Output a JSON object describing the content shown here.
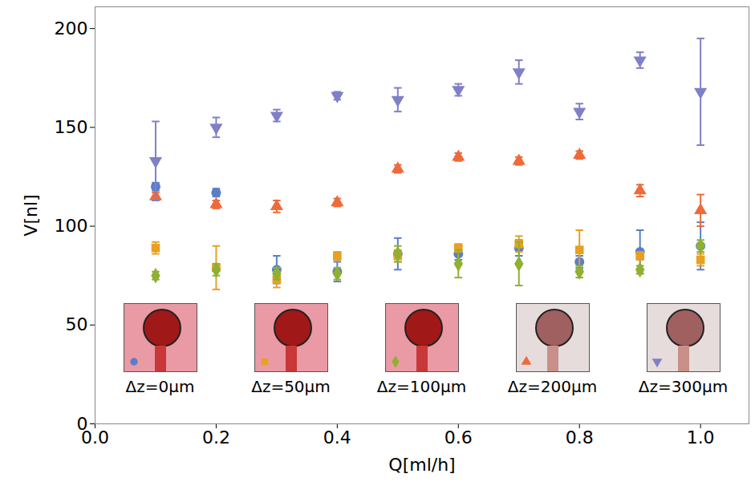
{
  "chart_data": {
    "type": "scatter",
    "x_label": "Q[ml/h]",
    "y_label": "V[nl]",
    "xlim": [
      0,
      1.08
    ],
    "ylim": [
      0,
      211
    ],
    "xticks": [
      {
        "value": 0,
        "label": "0.0"
      },
      0.2,
      0.4,
      0.6,
      0.8,
      {
        "value": 1,
        "label": "1.0"
      }
    ],
    "yticks": [
      0,
      50,
      100,
      150,
      200
    ],
    "grid": false,
    "legend": "bottom",
    "x": [
      0.1,
      0.2,
      0.3,
      0.4,
      0.5,
      0.6,
      0.7,
      0.8,
      0.9,
      1.0
    ],
    "series": [
      {
        "name": "Δz=0μm",
        "color": "#5a7fc8",
        "marker": "circle",
        "values": [
          120,
          117,
          78,
          77,
          86,
          86,
          89,
          82,
          87,
          90
        ],
        "errors": [
          2,
          2,
          7,
          5,
          8,
          3,
          4,
          3,
          11,
          12
        ]
      },
      {
        "name": "Δz=50μm",
        "color": "#e8a020",
        "marker": "square",
        "values": [
          89,
          79,
          73,
          85,
          85,
          89,
          91,
          88,
          85,
          83
        ],
        "errors": [
          3,
          11,
          4,
          2,
          3,
          2,
          4,
          10,
          2,
          3
        ]
      },
      {
        "name": "Δz=100μm",
        "color": "#8fb030",
        "marker": "diamond",
        "values": [
          75,
          78,
          76,
          76,
          86,
          81,
          81,
          77,
          78,
          90
        ],
        "errors": [
          2,
          3,
          3,
          3,
          4,
          7,
          11,
          3,
          2,
          3
        ]
      },
      {
        "name": "Δz=200μm",
        "color": "#ef6a3a",
        "marker": "triangle-up",
        "values": [
          115,
          111,
          110,
          112,
          129,
          135,
          133,
          136,
          118,
          108
        ],
        "errors": [
          2,
          2,
          3,
          2,
          2,
          2,
          2,
          2,
          3,
          8
        ]
      },
      {
        "name": "Δz=300μm",
        "color": "#8080c8",
        "marker": "triangle-down",
        "values": [
          133,
          150,
          156,
          166,
          164,
          169,
          178,
          158,
          184,
          168
        ],
        "errors": [
          20,
          5,
          3,
          2,
          6,
          3,
          6,
          4,
          4,
          27
        ]
      }
    ]
  }
}
